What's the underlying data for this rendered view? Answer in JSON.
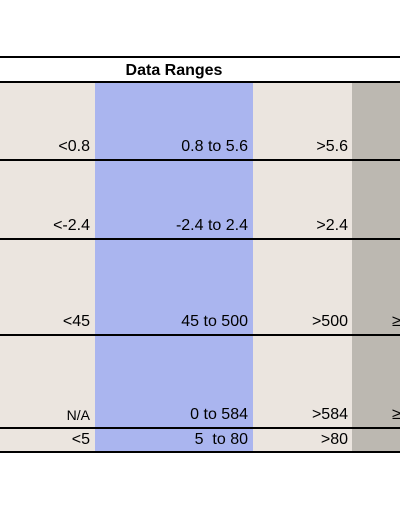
{
  "table": {
    "title": "Data Ranges",
    "rows": [
      {
        "low": "<0.8",
        "mid": "0.8 to 5.6",
        "high": ">5.6",
        "extra": ""
      },
      {
        "low": "<-2.4",
        "mid": "-2.4 to 2.4",
        "high": ">2.4",
        "extra": ""
      },
      {
        "low": "<45",
        "mid": "45 to 500",
        "high": ">500",
        "extra": "≥"
      },
      {
        "low": "N/A",
        "mid": "0 to 584",
        "high": ">584",
        "extra": "≥"
      },
      {
        "low": "<5",
        "mid": "5  to 80",
        "high": ">80",
        "extra": ""
      }
    ]
  }
}
